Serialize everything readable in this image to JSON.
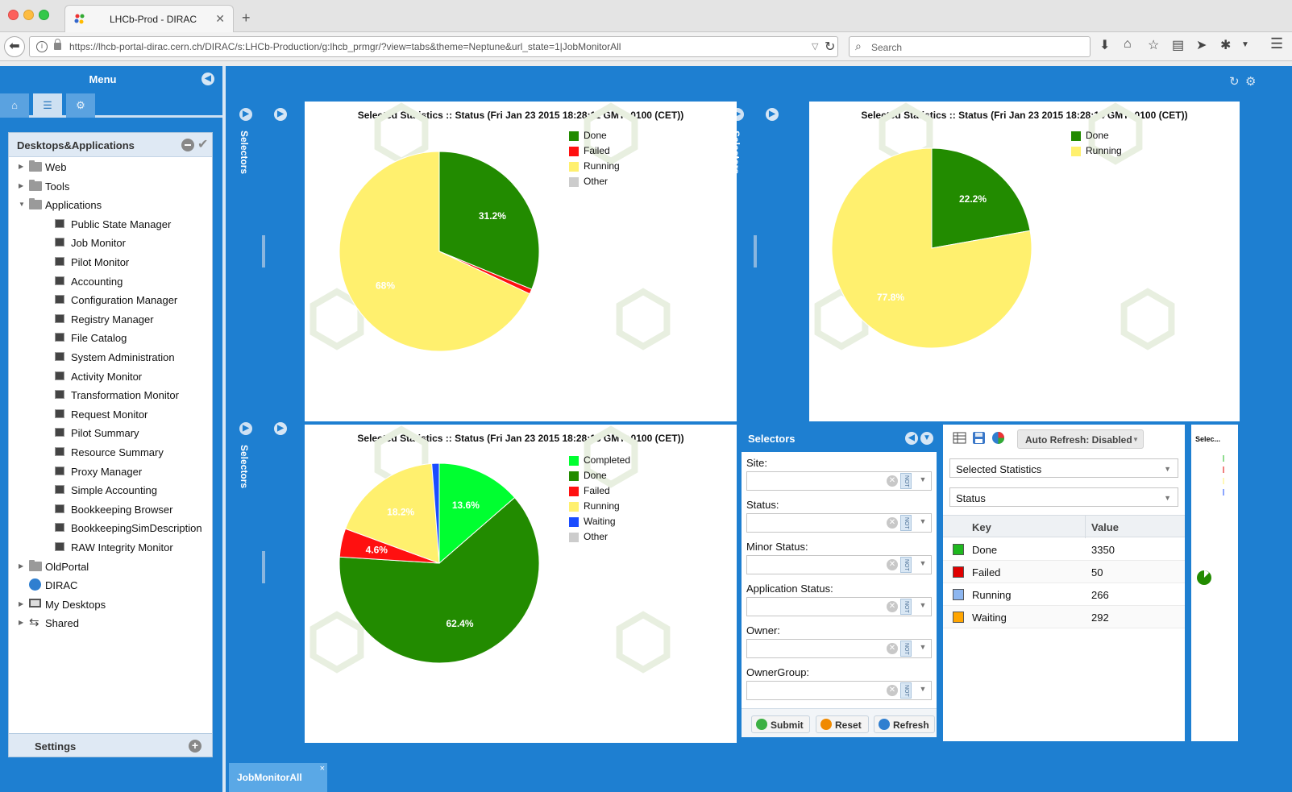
{
  "browser": {
    "tab_title": "LHCb-Prod - DIRAC",
    "new_tab": "+",
    "url": "https://lhcb-portal-dirac.cern.ch/DIRAC/s:LHCb-Production/g:lhcb_prmgr/?view=tabs&theme=Neptune&url_state=1|JobMonitorAll",
    "search_placeholder": "Search"
  },
  "menu": {
    "title": "Menu",
    "tree_title": "Desktops&Applications",
    "tree": [
      {
        "label": "Web",
        "type": "folder",
        "level": 0,
        "expanded": false
      },
      {
        "label": "Tools",
        "type": "folder",
        "level": 0,
        "expanded": false
      },
      {
        "label": "Applications",
        "type": "folder",
        "level": 0,
        "expanded": true
      },
      {
        "label": "Public State Manager",
        "type": "app",
        "level": 1
      },
      {
        "label": "Job Monitor",
        "type": "app",
        "level": 1
      },
      {
        "label": "Pilot Monitor",
        "type": "app",
        "level": 1
      },
      {
        "label": "Accounting",
        "type": "app",
        "level": 1
      },
      {
        "label": "Configuration Manager",
        "type": "app",
        "level": 1
      },
      {
        "label": "Registry Manager",
        "type": "app",
        "level": 1
      },
      {
        "label": "File Catalog",
        "type": "app",
        "level": 1
      },
      {
        "label": "System Administration",
        "type": "app",
        "level": 1
      },
      {
        "label": "Activity Monitor",
        "type": "app",
        "level": 1
      },
      {
        "label": "Transformation Monitor",
        "type": "app",
        "level": 1
      },
      {
        "label": "Request Monitor",
        "type": "app",
        "level": 1
      },
      {
        "label": "Pilot Summary",
        "type": "app",
        "level": 1
      },
      {
        "label": "Resource Summary",
        "type": "app",
        "level": 1
      },
      {
        "label": "Proxy Manager",
        "type": "app",
        "level": 1
      },
      {
        "label": "Simple Accounting",
        "type": "app",
        "level": 1
      },
      {
        "label": "Bookkeeping Browser",
        "type": "app",
        "level": 1
      },
      {
        "label": "BookkeepingSimDescription",
        "type": "app",
        "level": 1
      },
      {
        "label": "RAW Integrity Monitor",
        "type": "app",
        "level": 1
      },
      {
        "label": "OldPortal",
        "type": "folder",
        "level": 0,
        "expanded": false
      },
      {
        "label": "DIRAC",
        "type": "globe",
        "level": 0
      },
      {
        "label": "My Desktops",
        "type": "desktop",
        "level": 0,
        "expanded": false
      },
      {
        "label": "Shared",
        "type": "shared",
        "level": 0,
        "expanded": false
      }
    ],
    "settings_label": "Settings"
  },
  "strips": {
    "label": "Selectors"
  },
  "chart_data": [
    {
      "type": "pie",
      "title": "Selected Statistics :: Status (Fri Jan 23 2015 18:28:11 GMT+0100 (CET))",
      "categories": [
        "Done",
        "Failed",
        "Running",
        "Other"
      ],
      "values": [
        31.2,
        0.8,
        68.0,
        0.0
      ],
      "labels": [
        "31.2%",
        "",
        "68%",
        ""
      ],
      "colors": [
        "#228b00",
        "#ff1010",
        "#fff06e",
        "#cccccc"
      ],
      "legend": "top-right"
    },
    {
      "type": "pie",
      "title": "Selected Statistics :: Status (Fri Jan 23 2015 18:28:14 GMT+0100 (CET))",
      "categories": [
        "Done",
        "Running"
      ],
      "values": [
        22.2,
        77.8
      ],
      "labels": [
        "22.2%",
        "77.8%"
      ],
      "colors": [
        "#228b00",
        "#fff06e"
      ],
      "legend": "top-right"
    },
    {
      "type": "pie",
      "title": "Selected Statistics :: Status (Fri Jan 23 2015 18:28:18 GMT+0100 (CET))",
      "categories": [
        "Completed",
        "Done",
        "Failed",
        "Running",
        "Waiting",
        "Other"
      ],
      "values": [
        13.6,
        62.4,
        4.6,
        18.2,
        1.2,
        0.0
      ],
      "labels": [
        "13.6%",
        "62.4%",
        "4.6%",
        "18.2%",
        "",
        ""
      ],
      "colors": [
        "#00ff30",
        "#228b00",
        "#ff1010",
        "#fff06e",
        "#1a4cff",
        "#cccccc"
      ],
      "legend": "top-right"
    }
  ],
  "selectors_form": {
    "title": "Selectors",
    "fields": [
      {
        "label": "Site:",
        "value": ""
      },
      {
        "label": "Status:",
        "value": ""
      },
      {
        "label": "Minor Status:",
        "value": ""
      },
      {
        "label": "Application Status:",
        "value": ""
      },
      {
        "label": "Owner:",
        "value": ""
      },
      {
        "label": "OwnerGroup:",
        "value": ""
      }
    ],
    "not_label": "NOT",
    "buttons": {
      "submit": "Submit",
      "reset": "Reset",
      "refresh": "Refresh"
    }
  },
  "grid": {
    "auto_refresh": "Auto Refresh: Disabled",
    "combo1": "Selected Statistics",
    "combo2": "Status",
    "col_key": "Key",
    "col_value": "Value",
    "rows": [
      {
        "key": "Done",
        "value": "3350",
        "color": "#1fb81f"
      },
      {
        "key": "Failed",
        "value": "50",
        "color": "#e00000"
      },
      {
        "key": "Running",
        "value": "266",
        "color": "#8db6f0"
      },
      {
        "key": "Waiting",
        "value": "292",
        "color": "#ffa500"
      }
    ]
  },
  "mini": {
    "title": "Selec..."
  },
  "taskbar": {
    "tab": "JobMonitorAll",
    "close": "×"
  }
}
